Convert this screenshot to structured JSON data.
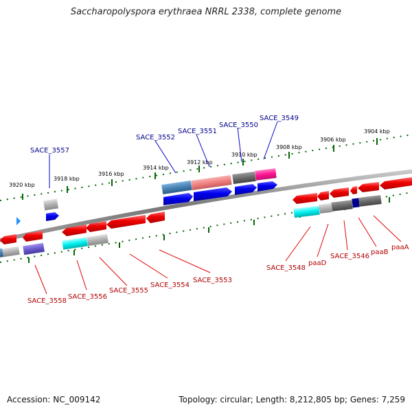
{
  "title": "Saccharopolyspora erythraea NRRL 2338, complete genome",
  "footer": {
    "accession": "Accession: NC_009142",
    "topology": "Topology: circular; Length: 8,212,805 bp; Genes: 7,259"
  },
  "colors": {
    "forward_gene": "#0000ee",
    "reverse_gene": "#ee0000",
    "pseudogene": "#a9a9a9",
    "tick": "#006400",
    "backbone": "#808080",
    "label_forward": "#00008b",
    "label_reverse": "#b00000",
    "cyan": "#00ffff",
    "magenta": "#ff1493",
    "steelblue": "#4682b4",
    "salmon": "#f08080",
    "slateblue": "#6a5acd",
    "darkgray": "#696969",
    "navy": "#00008b"
  },
  "scale_labels": [
    "3920 kbp",
    "3918 kbp",
    "3916 kbp",
    "3914 kbp",
    "3912 kbp",
    "3910 kbp",
    "3908 kbp",
    "3906 kbp",
    "3904 kbp"
  ],
  "top_labels": [
    "SACE_3557",
    "SACE_3552",
    "SACE_3551",
    "SACE_3550",
    "SACE_3549"
  ],
  "bottom_labels": [
    "SACE_3558",
    "SACE_3556",
    "SACE_3555",
    "SACE_3554",
    "SACE_3553",
    "SACE_3548",
    "paaD",
    "SACE_3546",
    "paaB",
    "paaA"
  ]
}
